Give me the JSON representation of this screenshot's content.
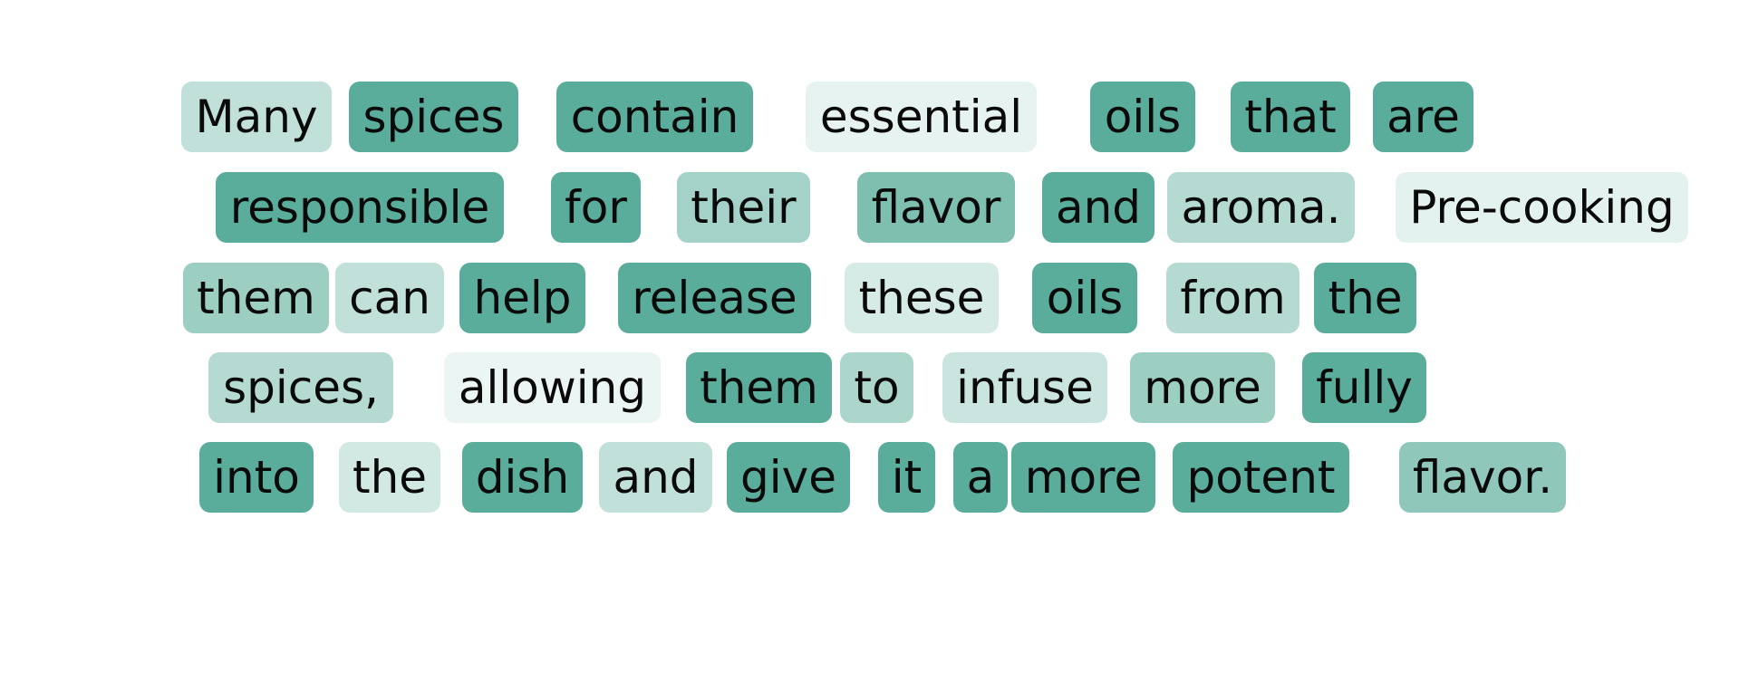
{
  "base_color": "#5aad9a",
  "tokens": [
    {
      "text": "Many",
      "weight": 0.38
    },
    {
      "text": "spices",
      "weight": 1.0
    },
    {
      "text": "contain",
      "weight": 1.0
    },
    {
      "text": "essential",
      "weight": 0.15
    },
    {
      "text": "oils",
      "weight": 1.0
    },
    {
      "text": "that",
      "weight": 1.0
    },
    {
      "text": "are",
      "weight": 1.0
    },
    {
      "text": "responsible",
      "weight": 1.0
    },
    {
      "text": "for",
      "weight": 1.0
    },
    {
      "text": "their",
      "weight": 0.55
    },
    {
      "text": "flavor",
      "weight": 0.78
    },
    {
      "text": "and",
      "weight": 1.0
    },
    {
      "text": "aroma.",
      "weight": 0.45
    },
    {
      "text": "Pre-cooking",
      "weight": 0.16
    },
    {
      "text": "them",
      "weight": 0.6
    },
    {
      "text": "can",
      "weight": 0.38
    },
    {
      "text": "help",
      "weight": 1.0
    },
    {
      "text": "release",
      "weight": 1.0
    },
    {
      "text": "these",
      "weight": 0.25
    },
    {
      "text": "oils",
      "weight": 1.0
    },
    {
      "text": "from",
      "weight": 0.45
    },
    {
      "text": "the",
      "weight": 1.0
    },
    {
      "text": "spices,",
      "weight": 0.45
    },
    {
      "text": "allowing",
      "weight": 0.12
    },
    {
      "text": "them",
      "weight": 1.0
    },
    {
      "text": "to",
      "weight": 0.5
    },
    {
      "text": "infuse",
      "weight": 0.32
    },
    {
      "text": "more",
      "weight": 0.6
    },
    {
      "text": "fully",
      "weight": 1.0
    },
    {
      "text": "into",
      "weight": 1.0
    },
    {
      "text": "the",
      "weight": 0.28
    },
    {
      "text": "dish",
      "weight": 1.0
    },
    {
      "text": "and",
      "weight": 0.38
    },
    {
      "text": "give",
      "weight": 1.0
    },
    {
      "text": "it",
      "weight": 1.0
    },
    {
      "text": "a",
      "weight": 1.0
    },
    {
      "text": "more",
      "weight": 1.0
    },
    {
      "text": "potent",
      "weight": 1.0
    },
    {
      "text": "flavor.",
      "weight": 0.68
    }
  ]
}
